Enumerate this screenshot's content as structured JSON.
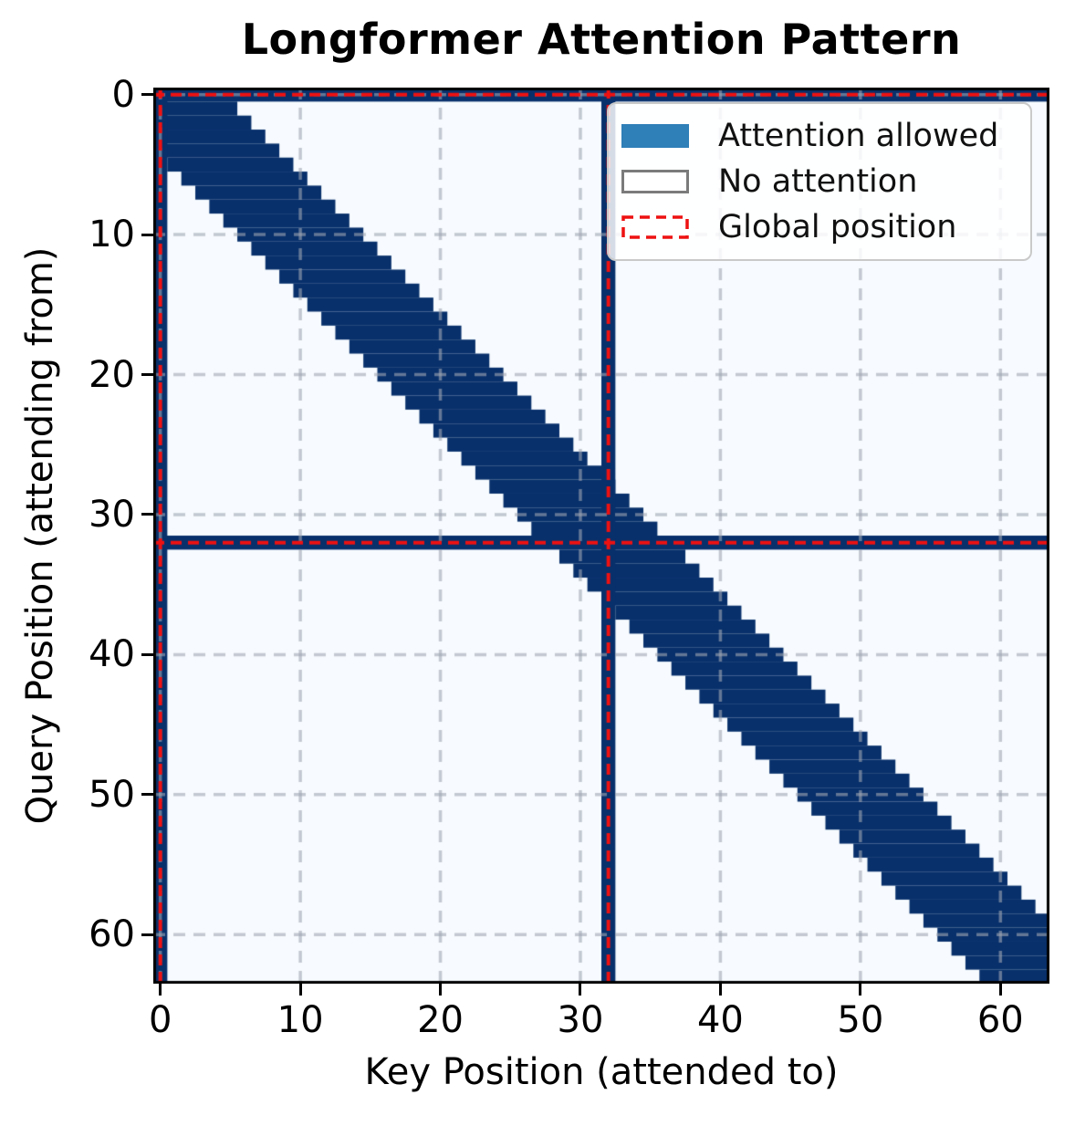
{
  "chart_data": {
    "type": "heatmap",
    "title": "Longformer Attention Pattern",
    "xlabel": "Key Position (attended to)",
    "ylabel": "Query Position (attending from)",
    "sequence_length": 64,
    "local_window_halfwidth": 4,
    "global_positions": [
      0,
      32
    ],
    "attention_rule": "attention[i][j] = 1 (allowed) if |i - j| <= 4 or i in {0,32} or j in {0,32}; else 0 (no attention)",
    "xticks": [
      0,
      10,
      20,
      30,
      40,
      50,
      60
    ],
    "yticks": [
      0,
      10,
      20,
      30,
      40,
      50,
      60
    ],
    "xlim": [
      -0.5,
      63.5
    ],
    "ylim": [
      63.5,
      -0.5
    ],
    "grid": true,
    "legend": {
      "position": "upper-right",
      "items": [
        {
          "label": "Attention allowed",
          "swatch": "filled-blue-patch"
        },
        {
          "label": "No attention",
          "swatch": "white-patch-gray-border"
        },
        {
          "label": "Global position",
          "swatch": "red-dashed-outline"
        }
      ]
    },
    "colors": {
      "attention_allowed": "#08306b",
      "no_attention": "#f7fbff",
      "global_position_line": "#ee1111",
      "grid_line": "rgba(160,166,178,0.6)",
      "legend_allowed_swatch": "#2f7fb8",
      "legend_no_attention_border": "#7b7b7b",
      "axes_spine": "#000000"
    }
  }
}
